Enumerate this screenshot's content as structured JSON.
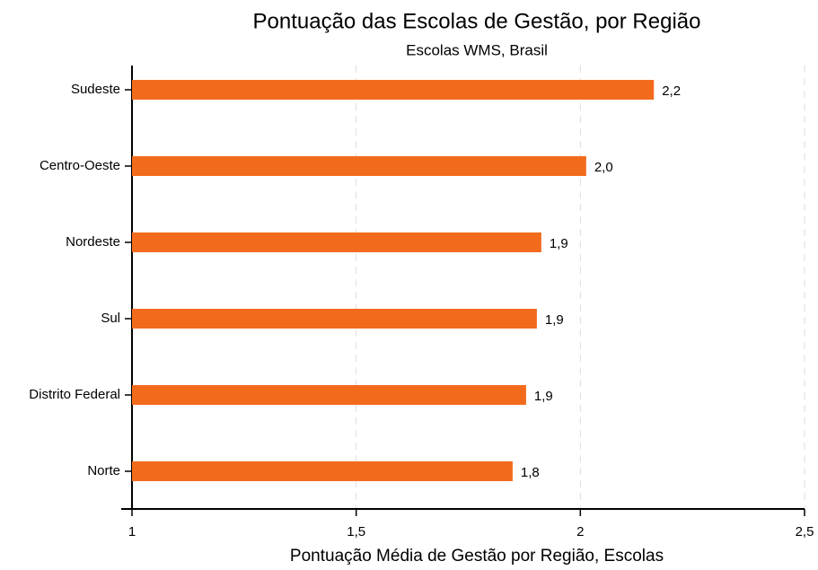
{
  "chart_data": {
    "type": "barh",
    "title": "Pontuação das Escolas de Gestão, por Região",
    "subtitle": "Escolas WMS, Brasil",
    "x_label": "Pontuação Média de Gestão por Região, Escolas",
    "categories": [
      "Sudeste",
      "Centro-Oeste",
      "Nordeste",
      "Sul",
      "Distrito Federal",
      "Norte"
    ],
    "values": [
      2.164,
      2.013,
      1.913,
      1.903,
      1.879,
      1.849
    ],
    "value_labels": [
      "2,2",
      "2,0",
      "1,9",
      "1,9",
      "1,9",
      "1,8"
    ],
    "color": "#f26b1d",
    "xlim": [
      1,
      2.5
    ],
    "xticks": [
      1,
      {
        "value": 1.5,
        "label": "1,5"
      },
      2,
      {
        "value": 2.5,
        "label": "2,5"
      }
    ],
    "grid": true
  }
}
